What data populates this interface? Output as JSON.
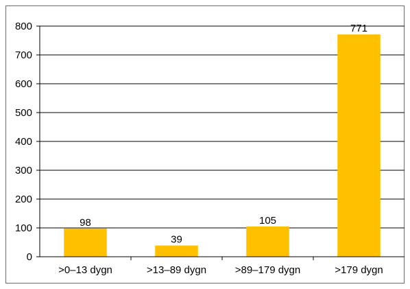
{
  "chart_data": {
    "type": "bar",
    "categories": [
      ">0–13 dygn",
      ">13–89 dygn",
      ">89–179 dygn",
      ">179 dygn"
    ],
    "values": [
      98,
      39,
      105,
      771
    ],
    "data_labels": [
      "98",
      "39",
      "105",
      "771"
    ],
    "title": "",
    "xlabel": "",
    "ylabel": "",
    "ylim": [
      0,
      800
    ],
    "yticks": [
      0,
      100,
      200,
      300,
      400,
      500,
      600,
      700,
      800
    ],
    "ytick_labels": [
      "0",
      "100",
      "200",
      "300",
      "400",
      "500",
      "600",
      "700",
      "800"
    ],
    "grid": "horizontal",
    "legend": "none",
    "bar_color": "#FFC000"
  }
}
